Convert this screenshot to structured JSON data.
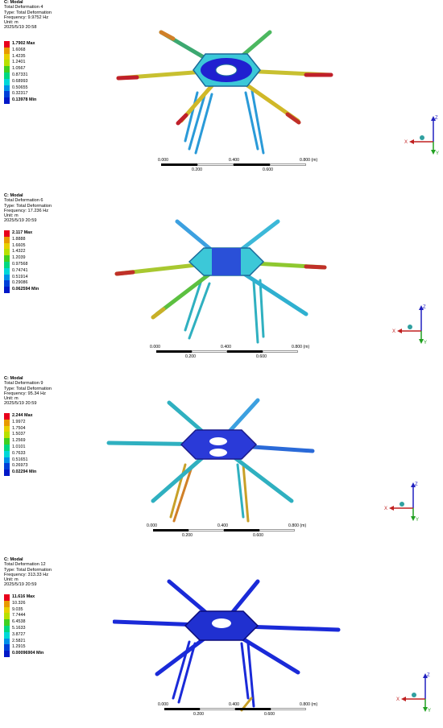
{
  "panels": [
    {
      "info": {
        "title": "C: Modal",
        "result": "Total Deformation 4",
        "type": "Type: Total Deformation",
        "frequency": "Frequency: 9.9752 Hz",
        "unit": "Unit: m",
        "timestamp": "2025/5/19 20:58"
      },
      "legend": [
        "1.7902 Max",
        "1.6068",
        "1.4235",
        "1.2401",
        "1.0567",
        "0.87331",
        "0.68993",
        "0.50655",
        "0.32317",
        "0.13978 Min"
      ],
      "scale": {
        "labels": [
          "0.000",
          "0.400",
          "0.800 (m)",
          "0.200",
          "0.600"
        ]
      },
      "triad": {
        "z": "Z",
        "x": "X",
        "y": "Y"
      },
      "arm_colors": [
        "#2fa0d8",
        "#c0202a",
        "#d6b020",
        "#1a8ad0",
        "#c03028",
        "#1a8ad0",
        "#d4a020",
        "#2fb0d0"
      ]
    },
    {
      "info": {
        "title": "C: Modal",
        "result": "Total Deformation 6",
        "type": "Type: Total Deformation",
        "frequency": "Frequency: 17.236 Hz",
        "unit": "Unit: m",
        "timestamp": "2025/5/19 20:59"
      },
      "legend": [
        "2.117 Max",
        "1.8888",
        "1.6605",
        "1.4322",
        "1.2039",
        "0.97568",
        "0.74741",
        "0.51914",
        "0.29086",
        "0.062594 Min"
      ],
      "scale": {
        "labels": [
          "0.000",
          "0.400",
          "0.800 (m)",
          "0.200",
          "0.600"
        ]
      },
      "triad": {
        "z": "Z",
        "x": "X",
        "y": "Y"
      },
      "arm_colors": [
        "#5cc040",
        "#c03028",
        "#3ca0e0",
        "#c03028",
        "#5cc040",
        "#2fb0d0",
        "#6cc840",
        "#2fb0d0"
      ]
    },
    {
      "info": {
        "title": "C: Modal",
        "result": "Total Deformation 9",
        "type": "Type: Total Deformation",
        "frequency": "Frequency: 95.34 Hz",
        "unit": "Unit: m",
        "timestamp": "2025/5/19 20:59"
      },
      "legend": [
        "2.244 Max",
        "1.9972",
        "1.7504",
        "1.5037",
        "1.2569",
        "1.0101",
        "0.7633",
        "0.51651",
        "0.26973",
        "0.02294 Min"
      ],
      "scale": {
        "labels": [
          "0.000",
          "0.400",
          "0.800 (m)",
          "0.200",
          "0.600"
        ]
      },
      "triad": {
        "z": "Z",
        "x": "X",
        "y": "Y"
      },
      "arm_colors": [
        "#2fb0c0",
        "#3ca0e0",
        "#2a6ad8",
        "#3ca0e0",
        "#2fb0c0",
        "#2a6ad8",
        "#2fb0c0",
        "#2a6ad8"
      ]
    },
    {
      "info": {
        "title": "C: Modal",
        "result": "Total Deformation 12",
        "type": "Type: Total Deformation",
        "frequency": "Frequency: 313.33 Hz",
        "unit": "Unit: m",
        "timestamp": "2025/5/19 20:59"
      },
      "legend": [
        "11.616 Max",
        "10.326",
        "9.035",
        "7.7444",
        "6.4538",
        "5.1633",
        "3.8727",
        "2.5821",
        "1.2915",
        "0.00096904 Min"
      ],
      "scale": {
        "labels": [
          "0.000",
          "0.400",
          "0.800 (m)",
          "0.200",
          "0.600"
        ]
      },
      "triad": {
        "z": "Z",
        "x": "X",
        "y": "Y"
      },
      "arm_colors": [
        "#1a2ad8",
        "#1a2ad8",
        "#1a2ad8",
        "#1a2ad8",
        "#1a2ad8",
        "#1a2ad8",
        "#1a2ad8",
        "#1a2ad8"
      ]
    }
  ],
  "legend_colors": [
    "#e8001c",
    "#e89a00",
    "#e8d000",
    "#b8e000",
    "#40d020",
    "#00d880",
    "#00d8d8",
    "#0090e8",
    "#0040d8",
    "#0018c8"
  ]
}
